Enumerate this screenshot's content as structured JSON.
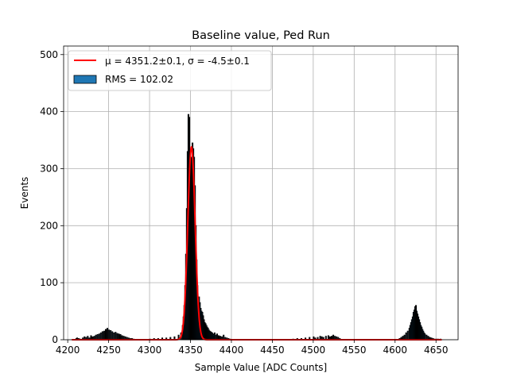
{
  "chart_data": {
    "type": "bar",
    "title": "Baseline value, Ped Run",
    "xlabel": "Sample Value [ADC Counts]",
    "ylabel": "Events",
    "xlim": [
      4195,
      4677
    ],
    "ylim": [
      0,
      515
    ],
    "x_ticks": [
      4200,
      4250,
      4300,
      4350,
      4400,
      4450,
      4500,
      4550,
      4600,
      4650
    ],
    "y_ticks": [
      0,
      100,
      200,
      300,
      400,
      500
    ],
    "grid": true,
    "legend_position": "top-left",
    "legend": [
      {
        "label": "μ = 4351.2±0.1, σ = -4.5±0.1",
        "kind": "line",
        "color": "#ff0000"
      },
      {
        "label": "RMS = 102.02",
        "kind": "patch",
        "color": "#1f77b4"
      }
    ],
    "histogram": {
      "bin_width": 1,
      "color": "#1f77b4",
      "edge_color": "#000000",
      "bins": [
        [
          4210,
          2
        ],
        [
          4211,
          3
        ],
        [
          4213,
          2
        ],
        [
          4215,
          1
        ],
        [
          4218,
          3
        ],
        [
          4220,
          5
        ],
        [
          4222,
          4
        ],
        [
          4224,
          6
        ],
        [
          4226,
          3
        ],
        [
          4228,
          7
        ],
        [
          4230,
          5
        ],
        [
          4232,
          6
        ],
        [
          4234,
          8
        ],
        [
          4236,
          9
        ],
        [
          4238,
          10
        ],
        [
          4240,
          12
        ],
        [
          4242,
          14
        ],
        [
          4244,
          15
        ],
        [
          4246,
          18
        ],
        [
          4248,
          20
        ],
        [
          4250,
          17
        ],
        [
          4252,
          16
        ],
        [
          4254,
          14
        ],
        [
          4256,
          12
        ],
        [
          4258,
          13
        ],
        [
          4260,
          11
        ],
        [
          4262,
          10
        ],
        [
          4264,
          9
        ],
        [
          4266,
          7
        ],
        [
          4268,
          6
        ],
        [
          4270,
          5
        ],
        [
          4272,
          4
        ],
        [
          4274,
          3
        ],
        [
          4276,
          2
        ],
        [
          4278,
          2
        ],
        [
          4280,
          1
        ],
        [
          4300,
          1
        ],
        [
          4305,
          2
        ],
        [
          4310,
          2
        ],
        [
          4315,
          3
        ],
        [
          4320,
          3
        ],
        [
          4325,
          4
        ],
        [
          4330,
          5
        ],
        [
          4335,
          8
        ],
        [
          4338,
          12
        ],
        [
          4340,
          25
        ],
        [
          4341,
          40
        ],
        [
          4342,
          60
        ],
        [
          4343,
          95
        ],
        [
          4344,
          150
        ],
        [
          4345,
          230
        ],
        [
          4346,
          330
        ],
        [
          4347,
          395
        ],
        [
          4348,
          390
        ],
        [
          4349,
          330
        ],
        [
          4350,
          320
        ],
        [
          4351,
          300
        ],
        [
          4352,
          345
        ],
        [
          4353,
          335
        ],
        [
          4354,
          320
        ],
        [
          4355,
          270
        ],
        [
          4356,
          200
        ],
        [
          4357,
          140
        ],
        [
          4358,
          95
        ],
        [
          4359,
          70
        ],
        [
          4360,
          75
        ],
        [
          4361,
          65
        ],
        [
          4362,
          55
        ],
        [
          4363,
          50
        ],
        [
          4364,
          48
        ],
        [
          4365,
          42
        ],
        [
          4366,
          35
        ],
        [
          4367,
          30
        ],
        [
          4368,
          28
        ],
        [
          4369,
          25
        ],
        [
          4370,
          22
        ],
        [
          4371,
          20
        ],
        [
          4372,
          17
        ],
        [
          4373,
          15
        ],
        [
          4374,
          14
        ],
        [
          4375,
          13
        ],
        [
          4376,
          12
        ],
        [
          4377,
          10
        ],
        [
          4378,
          9
        ],
        [
          4379,
          12
        ],
        [
          4380,
          8
        ],
        [
          4382,
          10
        ],
        [
          4384,
          7
        ],
        [
          4386,
          6
        ],
        [
          4388,
          5
        ],
        [
          4390,
          8
        ],
        [
          4392,
          4
        ],
        [
          4394,
          3
        ],
        [
          4396,
          2
        ],
        [
          4398,
          1
        ],
        [
          4475,
          1
        ],
        [
          4480,
          2
        ],
        [
          4485,
          2
        ],
        [
          4490,
          3
        ],
        [
          4495,
          4
        ],
        [
          4500,
          5
        ],
        [
          4502,
          3
        ],
        [
          4505,
          4
        ],
        [
          4508,
          6
        ],
        [
          4510,
          5
        ],
        [
          4512,
          4
        ],
        [
          4515,
          6
        ],
        [
          4518,
          7
        ],
        [
          4520,
          5
        ],
        [
          4522,
          6
        ],
        [
          4524,
          8
        ],
        [
          4526,
          6
        ],
        [
          4528,
          5
        ],
        [
          4530,
          4
        ],
        [
          4532,
          2
        ],
        [
          4605,
          2
        ],
        [
          4607,
          4
        ],
        [
          4609,
          6
        ],
        [
          4611,
          8
        ],
        [
          4613,
          12
        ],
        [
          4615,
          15
        ],
        [
          4617,
          20
        ],
        [
          4618,
          25
        ],
        [
          4619,
          30
        ],
        [
          4620,
          35
        ],
        [
          4621,
          40
        ],
        [
          4622,
          48
        ],
        [
          4623,
          52
        ],
        [
          4624,
          58
        ],
        [
          4625,
          60
        ],
        [
          4626,
          50
        ],
        [
          4627,
          45
        ],
        [
          4628,
          40
        ],
        [
          4629,
          35
        ],
        [
          4630,
          30
        ],
        [
          4631,
          25
        ],
        [
          4632,
          22
        ],
        [
          4633,
          18
        ],
        [
          4634,
          15
        ],
        [
          4635,
          12
        ],
        [
          4636,
          10
        ],
        [
          4638,
          8
        ],
        [
          4640,
          6
        ],
        [
          4642,
          4
        ],
        [
          4644,
          3
        ],
        [
          4646,
          2
        ],
        [
          4648,
          1
        ],
        [
          4650,
          1
        ],
        [
          4652,
          1
        ],
        [
          4655,
          1
        ]
      ]
    },
    "fit": {
      "type": "gaussian",
      "color": "#ff0000",
      "mu": 4351.2,
      "sigma": 4.5,
      "amplitude": 338,
      "x_range": [
        4205,
        4657
      ]
    }
  }
}
